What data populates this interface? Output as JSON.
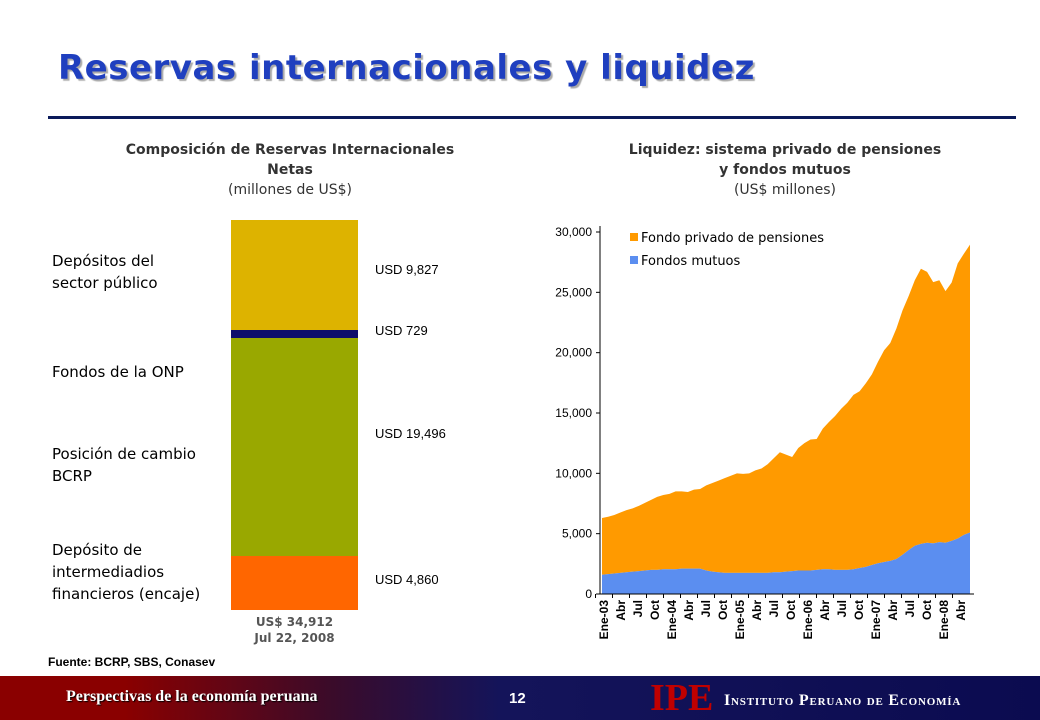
{
  "slide": {
    "title": "Reservas internacionales y liquidez",
    "source": "Fuente: BCRP, SBS, Conasev",
    "footer_left": "Perspectivas de la economía peruana",
    "page_number": "12",
    "logo_text": "IPE",
    "institute_name": "Instituto Peruano de Economía",
    "colors": {
      "title": "#1f3fbf",
      "rule": "#0a1a5a",
      "logo": "#c00000"
    }
  },
  "left_chart": {
    "title_line1": "Composición de Reservas Internacionales",
    "title_line2": "Netas",
    "subtitle": "(millones de US$)",
    "total_line1": "US$ 34,912",
    "total_line2": "Jul 22, 2008"
  },
  "right_chart": {
    "title_line1": "Liquidez: sistema privado de pensiones",
    "title_line2": "y fondos mutuos",
    "subtitle": "(US$ millones)"
  },
  "chart_data": [
    {
      "type": "bar",
      "stacked": true,
      "categories": [
        "Depósitos del sector público",
        "Fondos de la ONP",
        "Posición de cambio BCRP",
        "Depósito de intermediadios financieros (encaje)"
      ],
      "segments": [
        {
          "label": "Depósito de intermediadios financieros (encaje)",
          "value": 4860,
          "value_label": "USD 4,860",
          "color": "#ff6600"
        },
        {
          "label": "Posición de cambio BCRP",
          "value": 19496,
          "value_label": "USD 19,496",
          "color": "#99a800"
        },
        {
          "label": "Fondos de la ONP",
          "value": 729,
          "value_label": "USD 729",
          "color": "#0d0d6b"
        },
        {
          "label": "Depósitos del sector público",
          "value": 9827,
          "value_label": "USD 9,827",
          "color": "#ddb300"
        }
      ],
      "category_labels": [
        {
          "line1": "Depósitos del",
          "line2": "sector público"
        },
        {
          "line1": "Fondos de la ONP"
        },
        {
          "line1": "Posición de cambio",
          "line2": "BCRP"
        },
        {
          "line1": "Depósito de",
          "line2": "intermediadios",
          "line3": "financieros (encaje)"
        }
      ],
      "total": 34912
    },
    {
      "type": "area",
      "stacked": true,
      "x_tick_labels": [
        "Ene-03",
        "Abr",
        "Jul",
        "Oct",
        "Ene-04",
        "Abr",
        "Jul",
        "Oct",
        "Ene-05",
        "Abr",
        "Jul",
        "Oct",
        "Ene-06",
        "Abr",
        "Jul",
        "Oct",
        "Ene-07",
        "Abr",
        "Jul",
        "Oct",
        "Ene-08",
        "Abr"
      ],
      "y_ticks": [
        0,
        5000,
        10000,
        15000,
        20000,
        25000,
        30000
      ],
      "y_tick_labels": [
        "0",
        "5,000",
        "10,000",
        "15,000",
        "20,000",
        "25,000",
        "30,000"
      ],
      "ylim": [
        0,
        30000
      ],
      "legend": "top-left",
      "series": [
        {
          "name": "Fondos mutuos",
          "color": "#5b8ef0",
          "values": [
            1600,
            1650,
            1700,
            1750,
            1800,
            1850,
            1900,
            1950,
            2000,
            2000,
            2050,
            2050,
            2050,
            2100,
            2100,
            2100,
            2100,
            1950,
            1850,
            1800,
            1750,
            1750,
            1750,
            1750,
            1750,
            1750,
            1750,
            1750,
            1800,
            1800,
            1850,
            1900,
            1950,
            1950,
            1950,
            2000,
            2050,
            2050,
            2000,
            2000,
            2000,
            2050,
            2150,
            2250,
            2400,
            2550,
            2650,
            2750,
            2900,
            3250,
            3650,
            4000,
            4150,
            4250,
            4200,
            4300,
            4250,
            4400,
            4600,
            4900,
            5100
          ]
        },
        {
          "name": "Fondo privado de pensiones",
          "color": "#ff9a00",
          "values": [
            4700,
            4750,
            4850,
            5000,
            5150,
            5250,
            5400,
            5600,
            5800,
            6050,
            6150,
            6250,
            6450,
            6400,
            6350,
            6550,
            6600,
            7050,
            7350,
            7600,
            7850,
            8050,
            8250,
            8200,
            8250,
            8500,
            8650,
            9000,
            9450,
            9950,
            9700,
            9450,
            10150,
            10550,
            10850,
            10850,
            11650,
            12200,
            12750,
            13350,
            13850,
            14450,
            14650,
            15200,
            15800,
            16700,
            17550,
            18050,
            19100,
            20250,
            21050,
            22000,
            22800,
            22450,
            21650,
            21700,
            20850,
            21400,
            22800,
            23300,
            23850
          ]
        }
      ]
    }
  ]
}
